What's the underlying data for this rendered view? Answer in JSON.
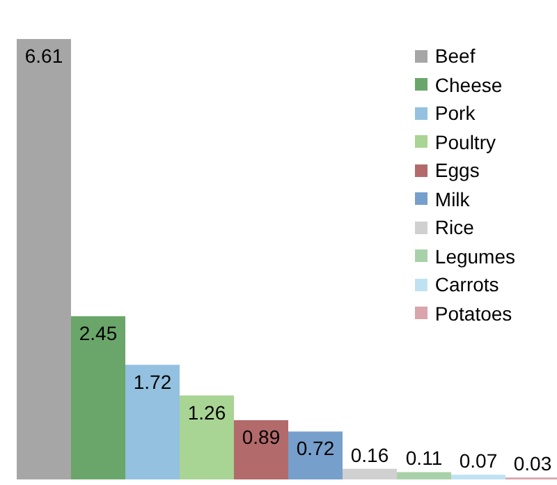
{
  "chart_data": {
    "type": "bar",
    "categories": [
      null
    ],
    "series": [
      {
        "name": "Beef",
        "color": "#a6a6a6",
        "values": [
          6.61
        ]
      },
      {
        "name": "Cheese",
        "color": "#6aa66a",
        "values": [
          2.45
        ]
      },
      {
        "name": "Pork",
        "color": "#93c1df",
        "values": [
          1.72
        ]
      },
      {
        "name": "Poultry",
        "color": "#a8d494",
        "values": [
          1.26
        ]
      },
      {
        "name": "Eggs",
        "color": "#b36a6a",
        "values": [
          0.89
        ]
      },
      {
        "name": "Milk",
        "color": "#779fcc",
        "values": [
          0.72
        ]
      },
      {
        "name": "Rice",
        "color": "#d0d0d0",
        "values": [
          0.16
        ]
      },
      {
        "name": "Legumes",
        "color": "#a9d1a9",
        "values": [
          0.11
        ]
      },
      {
        "name": "Carrots",
        "color": "#bfe2f3",
        "values": [
          0.07
        ]
      },
      {
        "name": "Potatoes",
        "color": "#d9a4aa",
        "values": [
          0.03
        ]
      }
    ],
    "data_labels": true,
    "legend": "top right",
    "tick_labels": false
  }
}
